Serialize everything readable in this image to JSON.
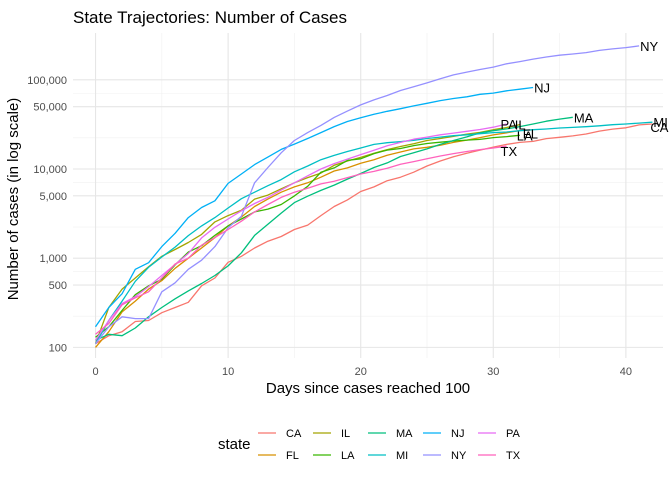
{
  "chart_data": {
    "type": "line",
    "title": "State Trajectories: Number of Cases",
    "xlabel": "Days since cases reached 100",
    "ylabel": "Number of cases (in log scale)",
    "y_scale": "log10",
    "xlim": [
      -1.7,
      42.8
    ],
    "ylim": [
      76,
      335000
    ],
    "x_ticks": [
      0,
      10,
      20,
      30,
      40
    ],
    "x_tick_labels": [
      "0",
      "10",
      "20",
      "30",
      "40"
    ],
    "y_ticks": [
      100,
      500,
      1000,
      5000,
      10000,
      50000,
      100000
    ],
    "y_tick_labels": [
      "100",
      "500",
      "1,000",
      "5,000",
      "10,000",
      "50,000",
      "100,000"
    ],
    "grid": true,
    "legend": {
      "title": "state",
      "position": "bottom",
      "entries": [
        "CA",
        "FL",
        "IL",
        "LA",
        "MA",
        "MI",
        "NJ",
        "NY",
        "PA",
        "TX"
      ]
    },
    "series": [
      {
        "name": "CA",
        "color": "#F8766D",
        "x": [
          0,
          1,
          2,
          3,
          4,
          5,
          6,
          7,
          8,
          9,
          10,
          11,
          12,
          13,
          14,
          15,
          16,
          17,
          18,
          19,
          20,
          21,
          22,
          23,
          24,
          25,
          26,
          27,
          28,
          29,
          30,
          31,
          32,
          33,
          34,
          35,
          36,
          37,
          38,
          39,
          40,
          41,
          42
        ],
        "y": [
          110,
          135,
          150,
          195,
          200,
          245,
          280,
          320,
          490,
          600,
          900,
          1050,
          1300,
          1550,
          1750,
          2100,
          2350,
          3000,
          3800,
          4500,
          5600,
          6300,
          7400,
          8100,
          9200,
          10800,
          12300,
          13700,
          15000,
          16300,
          17600,
          18900,
          19900,
          20400,
          21900,
          22700,
          23500,
          24700,
          26600,
          28000,
          29000,
          31200,
          32000
        ]
      },
      {
        "name": "FL",
        "color": "#D89000",
        "x": [
          0,
          1,
          2,
          3,
          4,
          5,
          6,
          7,
          8,
          9,
          10,
          11,
          12,
          13,
          14,
          15,
          16,
          17,
          18,
          19,
          20,
          21,
          22,
          23,
          24,
          25,
          26,
          27,
          28,
          29,
          30,
          31,
          32
        ],
        "y": [
          100,
          150,
          250,
          330,
          450,
          560,
          770,
          1000,
          1300,
          1700,
          2300,
          2900,
          3800,
          4600,
          5500,
          6300,
          7000,
          8100,
          9500,
          10300,
          11600,
          12700,
          14300,
          15500,
          16800,
          17500,
          18500,
          19900,
          21100,
          22500,
          24100,
          25500,
          27000
        ]
      },
      {
        "name": "IL",
        "color": "#A3A500",
        "x": [
          0,
          1,
          2,
          3,
          4,
          5,
          6,
          7,
          8,
          9,
          10,
          11,
          12,
          13,
          14,
          15,
          16,
          17,
          18,
          19,
          20,
          21,
          22,
          23,
          24,
          25,
          26,
          27,
          28,
          29,
          30,
          31,
          32
        ],
        "y": [
          110,
          280,
          450,
          600,
          800,
          1050,
          1250,
          1500,
          1850,
          2550,
          3000,
          3450,
          4600,
          5100,
          6000,
          7000,
          8000,
          9000,
          11000,
          12300,
          13500,
          15000,
          16500,
          17900,
          19200,
          20850,
          22000,
          23250,
          24600,
          25700,
          27600,
          29200,
          31500
        ]
      },
      {
        "name": "LA",
        "color": "#39B600",
        "x": [
          0,
          1,
          2,
          3,
          4,
          5,
          6,
          7,
          8,
          9,
          10,
          11,
          12,
          13,
          14,
          15,
          16,
          17,
          18,
          19,
          20,
          21,
          22,
          23,
          24,
          25,
          26,
          27,
          28,
          29,
          30,
          31,
          32
        ],
        "y": [
          130,
          170,
          260,
          390,
          490,
          580,
          840,
          1170,
          1380,
          1800,
          2300,
          2750,
          3300,
          3550,
          4000,
          5000,
          6400,
          9200,
          10300,
          12500,
          13000,
          14900,
          16300,
          17000,
          18300,
          19300,
          20000,
          20600,
          21100,
          21500,
          22500,
          23100,
          23900
        ]
      },
      {
        "name": "MA",
        "color": "#00BF7D",
        "x": [
          0,
          1,
          2,
          3,
          4,
          5,
          6,
          7,
          8,
          9,
          10,
          11,
          12,
          13,
          14,
          15,
          16,
          17,
          18,
          19,
          20,
          21,
          22,
          23,
          24,
          25,
          26,
          27,
          28,
          29,
          30,
          31,
          32,
          33,
          34,
          35,
          36
        ],
        "y": [
          120,
          140,
          135,
          165,
          220,
          280,
          350,
          430,
          520,
          640,
          820,
          1150,
          1800,
          2400,
          3200,
          4200,
          4950,
          5750,
          6600,
          7700,
          8900,
          10400,
          11700,
          13800,
          15200,
          16800,
          18900,
          20900,
          22900,
          25400,
          26900,
          28200,
          29900,
          32000,
          34400,
          36300,
          38000
        ]
      },
      {
        "name": "MI",
        "color": "#00BFC4",
        "x": [
          0,
          1,
          2,
          3,
          4,
          5,
          6,
          7,
          8,
          9,
          10,
          11,
          12,
          13,
          14,
          15,
          16,
          17,
          18,
          19,
          20,
          21,
          22,
          23,
          24,
          25,
          26,
          27,
          28,
          29,
          30,
          31,
          32,
          33,
          34,
          35,
          36,
          37,
          38,
          39,
          40,
          41,
          42
        ],
        "y": [
          110,
          200,
          330,
          550,
          790,
          1030,
          1330,
          1790,
          2300,
          2850,
          3650,
          4650,
          5500,
          6500,
          7600,
          9300,
          10800,
          12700,
          14200,
          15700,
          17200,
          18900,
          19700,
          20300,
          21000,
          22000,
          22800,
          23600,
          24200,
          24900,
          25600,
          26000,
          26900,
          27600,
          28100,
          28800,
          29300,
          29800,
          30500,
          31400,
          32000,
          32700,
          33500
        ]
      },
      {
        "name": "NJ",
        "color": "#00B0F6",
        "x": [
          0,
          1,
          2,
          3,
          4,
          5,
          6,
          7,
          8,
          9,
          10,
          11,
          12,
          13,
          14,
          15,
          16,
          17,
          18,
          19,
          20,
          21,
          22,
          23,
          24,
          25,
          26,
          27,
          28,
          29,
          30,
          31,
          32,
          33
        ],
        "y": [
          170,
          280,
          400,
          750,
          890,
          1350,
          1900,
          2850,
          3700,
          4400,
          6900,
          8800,
          11200,
          13600,
          16600,
          19000,
          22000,
          25600,
          29900,
          34100,
          37500,
          41100,
          44400,
          47400,
          51000,
          54600,
          58500,
          61800,
          64500,
          68800,
          71000,
          75300,
          78500,
          82000
        ]
      },
      {
        "name": "NY",
        "color": "#9590FF",
        "x": [
          0,
          1,
          2,
          3,
          4,
          5,
          6,
          7,
          8,
          9,
          10,
          11,
          12,
          13,
          14,
          15,
          16,
          17,
          18,
          19,
          20,
          21,
          22,
          23,
          24,
          25,
          26,
          27,
          28,
          29,
          30,
          31,
          32,
          33,
          34,
          35,
          36,
          37,
          38,
          39,
          40,
          41
        ],
        "y": [
          110,
          170,
          220,
          210,
          210,
          420,
          530,
          750,
          950,
          1350,
          2200,
          2950,
          7000,
          10400,
          15200,
          20900,
          25600,
          30800,
          37900,
          44600,
          52300,
          59500,
          66700,
          76000,
          83700,
          92400,
          102800,
          113700,
          122000,
          130700,
          138800,
          151100,
          160000,
          170800,
          180400,
          188700,
          195000,
          202000,
          214000,
          222000,
          230000,
          240000
        ]
      },
      {
        "name": "PA",
        "color": "#E76BF3",
        "x": [
          0,
          1,
          2,
          3,
          4,
          5,
          6,
          7,
          8,
          9,
          10,
          11,
          12,
          13,
          14,
          15,
          16,
          17,
          18,
          19,
          20,
          21,
          22,
          23,
          24,
          25,
          26,
          27,
          28,
          29,
          30,
          31
        ],
        "y": [
          120,
          200,
          310,
          370,
          480,
          640,
          850,
          1130,
          1690,
          2220,
          2750,
          3400,
          4100,
          4800,
          5800,
          7000,
          8400,
          10000,
          11500,
          12900,
          14500,
          16200,
          18200,
          19900,
          21600,
          22800,
          24200,
          25300,
          26500,
          27700,
          29400,
          32000
        ]
      },
      {
        "name": "TX",
        "color": "#FF62BC",
        "x": [
          0,
          1,
          2,
          3,
          4,
          5,
          6,
          7,
          8,
          9,
          10,
          11,
          12,
          13,
          14,
          15,
          16,
          17,
          18,
          19,
          20,
          21,
          22,
          23,
          24,
          25,
          26,
          27,
          28,
          29,
          30,
          31
        ],
        "y": [
          140,
          185,
          300,
          360,
          420,
          600,
          860,
          1000,
          1400,
          1700,
          2100,
          2600,
          3300,
          4000,
          4800,
          5500,
          6100,
          6800,
          7300,
          8000,
          8800,
          9400,
          10200,
          11300,
          12100,
          13000,
          14000,
          14900,
          15700,
          16500,
          17200,
          18000
        ]
      }
    ],
    "end_labels": [
      "CA",
      "FL",
      "IL",
      "LA",
      "MA",
      "MI",
      "NJ",
      "NY",
      "PA",
      "TX"
    ]
  }
}
